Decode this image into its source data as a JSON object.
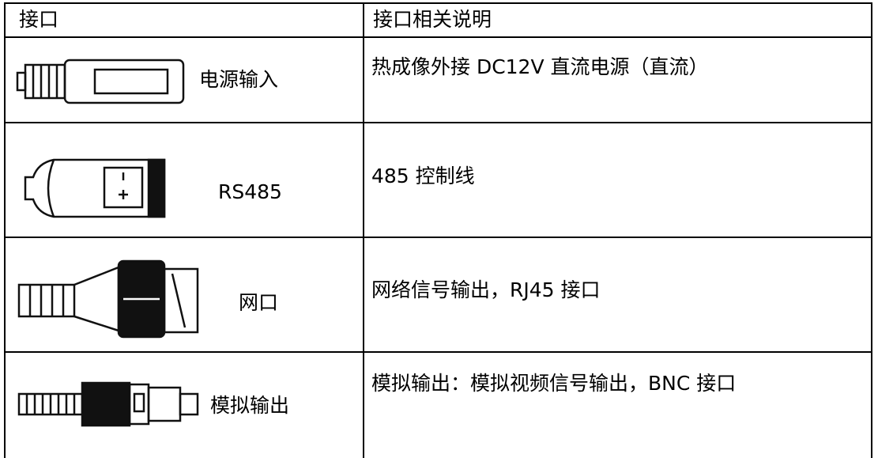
{
  "table": {
    "header": [
      "接口",
      "接口相关说明"
    ],
    "rows": [
      [
        "电源输入",
        "热成像外接 DC12V 直流电源（直流）"
      ],
      [
        "RS485",
        "485 控制线"
      ],
      [
        "网口",
        "网络信号输出，RJ45 接口"
      ],
      [
        "模拟输出",
        "模拟输出：模拟视频信号输出，BNC 接口"
      ]
    ]
  }
}
